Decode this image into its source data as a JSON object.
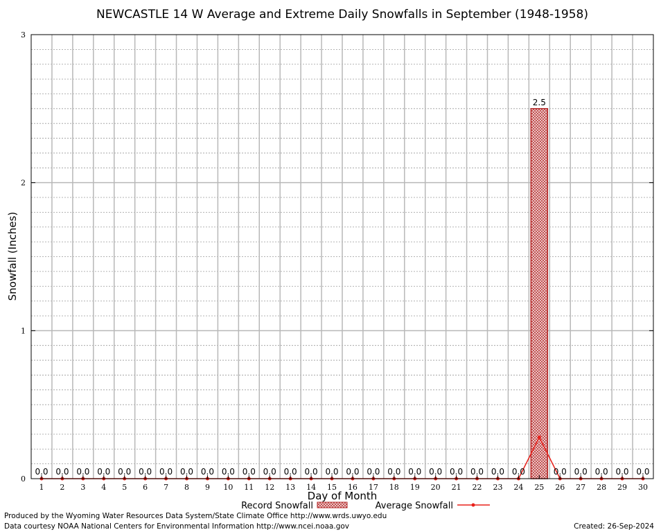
{
  "chart_data": {
    "type": "bar",
    "title": "NEWCASTLE 14 W Average and Extreme Daily Snowfalls in September (1948-1958)",
    "xlabel": "Day of Month",
    "ylabel": "Snowfall (Inches)",
    "ylim": [
      0,
      3
    ],
    "yticks": [
      0,
      1,
      2,
      3
    ],
    "grid": true,
    "categories": [
      "1",
      "2",
      "3",
      "4",
      "5",
      "6",
      "7",
      "8",
      "9",
      "10",
      "11",
      "12",
      "13",
      "14",
      "15",
      "16",
      "17",
      "18",
      "19",
      "20",
      "21",
      "22",
      "23",
      "24",
      "25",
      "26",
      "27",
      "28",
      "29",
      "30"
    ],
    "series": [
      {
        "name": "Record Snowfall",
        "type": "bar",
        "color": "#b22222",
        "values": [
          0,
          0,
          0,
          0,
          0,
          0,
          0,
          0,
          0,
          0,
          0,
          0,
          0,
          0,
          0,
          0,
          0,
          0,
          0,
          0,
          0,
          0,
          0,
          0,
          2.5,
          0,
          0,
          0,
          0,
          0
        ],
        "labels": [
          "0.0",
          "0.0",
          "0.0",
          "0.0",
          "0.0",
          "0.0",
          "0.0",
          "0.0",
          "0.0",
          "0.0",
          "0.0",
          "0.0",
          "0.0",
          "0.0",
          "0.0",
          "0.0",
          "0.0",
          "0.0",
          "0.0",
          "0.0",
          "0.0",
          "0.0",
          "0.0",
          "0.0",
          "2.5",
          "0.0",
          "0.0",
          "0.0",
          "0.0",
          "0.0"
        ]
      },
      {
        "name": "Average Snowfall",
        "type": "line",
        "color": "#e8201a",
        "values": [
          0,
          0,
          0,
          0,
          0,
          0,
          0,
          0,
          0,
          0,
          0,
          0,
          0,
          0,
          0,
          0,
          0,
          0,
          0,
          0,
          0,
          0,
          0,
          0,
          0.28,
          0,
          0,
          0,
          0,
          0
        ]
      }
    ],
    "legend": {
      "position": "bottom-center",
      "items": [
        "Record Snowfall",
        "Average Snowfall"
      ]
    }
  },
  "footer": {
    "line1": "Produced by the Wyoming Water Resources Data System/State Climate Office http://www.wrds.uwyo.edu",
    "line2": "Data courtesy NOAA National Centers for Environmental Information http://www.ncei.noaa.gov",
    "created": "Created:  26-Sep-2024"
  }
}
